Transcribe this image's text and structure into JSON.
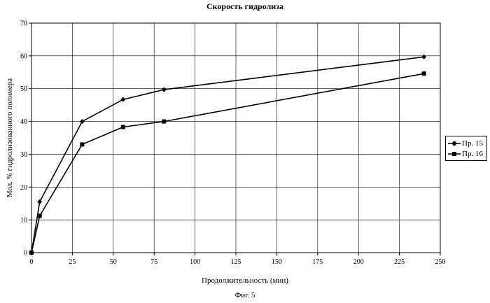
{
  "chart_data": {
    "type": "line",
    "title": "Скорость гидролиза",
    "xlabel": "Продолжительность (мин)",
    "ylabel": "Мол. % гидролизованного полимера",
    "caption": "Фиг. 5",
    "xlim": [
      0,
      250
    ],
    "ylim": [
      0,
      70
    ],
    "xticks": [
      0,
      25,
      50,
      75,
      100,
      125,
      150,
      175,
      200,
      225,
      250
    ],
    "yticks": [
      0,
      10,
      20,
      30,
      40,
      50,
      60,
      70
    ],
    "grid": true,
    "legend_position": "right",
    "series": [
      {
        "name": "Пр. 15",
        "marker": "diamond",
        "points": [
          [
            0,
            0
          ],
          [
            5,
            15.5
          ],
          [
            31,
            40
          ],
          [
            56,
            46.7
          ],
          [
            81,
            49.7
          ],
          [
            240,
            59.7
          ]
        ]
      },
      {
        "name": "Пр. 16",
        "marker": "square",
        "points": [
          [
            0,
            0
          ],
          [
            5,
            11.2
          ],
          [
            31,
            33
          ],
          [
            56,
            38.3
          ],
          [
            81,
            40
          ],
          [
            240,
            54.6
          ]
        ]
      }
    ]
  }
}
